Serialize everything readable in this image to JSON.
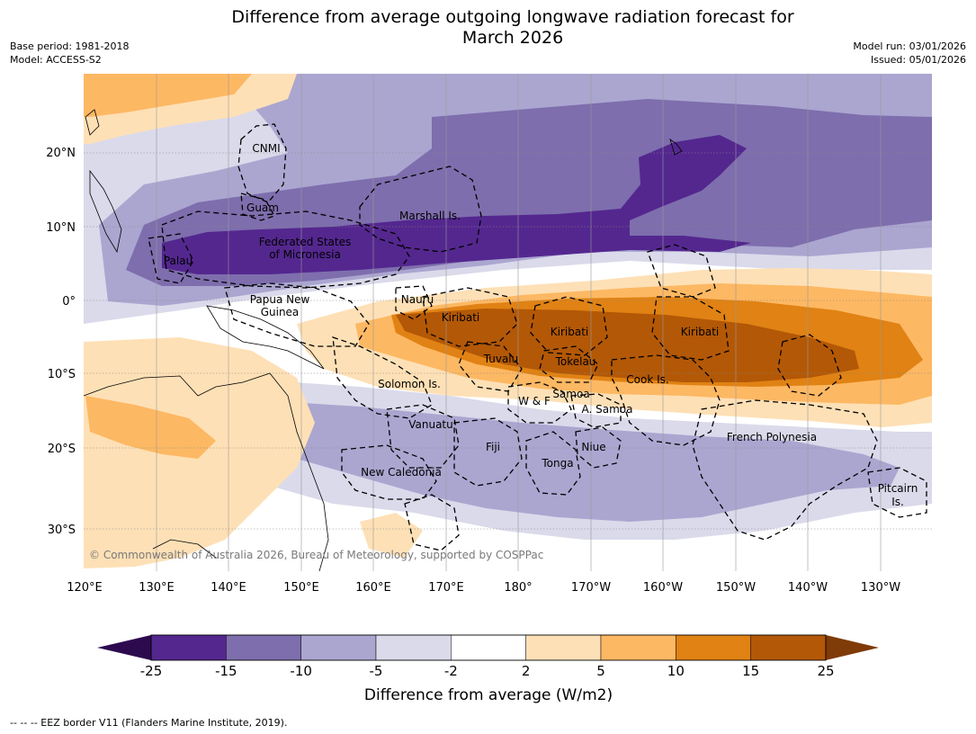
{
  "title": {
    "line1": "Difference from average outgoing longwave radiation forecast for",
    "line2": "March 2026"
  },
  "meta": {
    "base_period": "Base period: 1981-2018",
    "model": "Model: ACCESS-S2",
    "model_run": "Model run: 03/01/2026",
    "issued": "Issued: 05/01/2026"
  },
  "axes": {
    "lon_ticks": [
      "120°E",
      "130°E",
      "140°E",
      "150°E",
      "160°E",
      "170°E",
      "180°",
      "170°W",
      "160°W",
      "150°W",
      "140°W",
      "130°W"
    ],
    "lat_ticks": [
      "20°N",
      "10°N",
      "0°",
      "10°S",
      "20°S",
      "30°S"
    ]
  },
  "places": {
    "cnmi": "CNMI",
    "guam": "Guam",
    "marshall": "Marshall Is.",
    "fsm_1": "Federated States",
    "fsm_2": "of Micronesia",
    "palau": "Palau",
    "png_1": "Papua New",
    "png_2": "Guinea",
    "nauru": "Nauru",
    "kiribati_w": "Kiribati",
    "kiribati_c": "Kiribati",
    "kiribati_e": "Kiribati",
    "tuvalu": "Tuvalu",
    "tokelau": "Tokelau",
    "cook": "Cook Is.",
    "solomon": "Solomon Is.",
    "wf": "W & F",
    "samoa": "Samoa",
    "asamoa": "A. Samoa",
    "vanuatu": "Vanuatu",
    "fiji": "Fiji",
    "niue": "Niue",
    "tonga": "Tonga",
    "new_caledonia": "New Caledonia",
    "french_polynesia": "French Polynesia",
    "pitcairn_1": "Pitcairn",
    "pitcairn_2": "Is."
  },
  "copyright": "© Commonwealth of Australia 2026, Bureau of Meteorology, supported by COSPPac",
  "colorbar": {
    "title": "Difference from average (W/m2)",
    "ticks": [
      "-25",
      "-15",
      "-10",
      "-5",
      "-2",
      "2",
      "5",
      "10",
      "15",
      "25"
    ],
    "colors": [
      "#2d0a4e",
      "#54278f",
      "#7e6ead",
      "#aba6d0",
      "#dadaeb",
      "#ffffff",
      "#fee0b6",
      "#fdb863",
      "#e08214",
      "#b35806",
      "#7f3b08"
    ]
  },
  "footer": "--  --  -- EEZ border V11 (Flanders Marine Institute, 2019)."
}
